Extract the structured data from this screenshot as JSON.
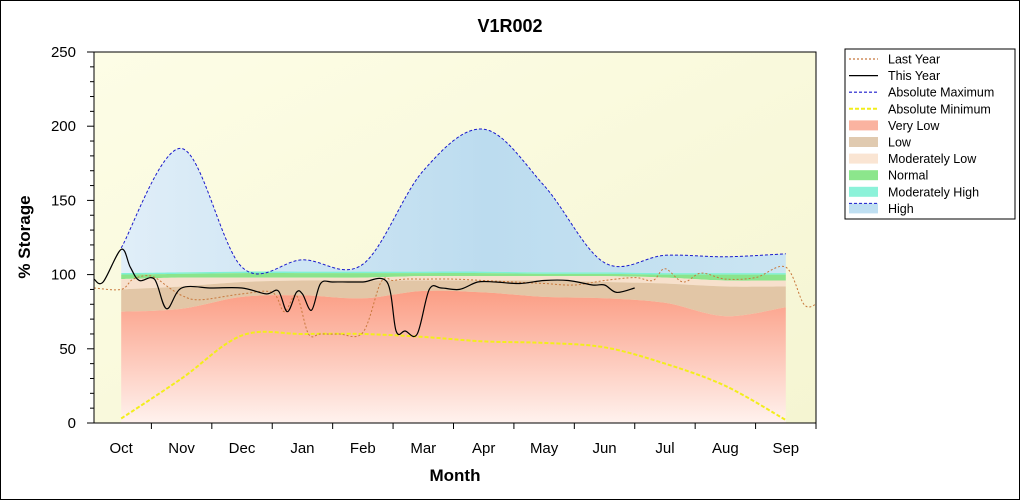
{
  "chart_data": {
    "type": "area",
    "title": "V1R002",
    "xlabel": "Month",
    "ylabel": "% Storage",
    "ylim": [
      0,
      250
    ],
    "yticks": [
      0,
      50,
      100,
      150,
      200,
      250
    ],
    "x_range": [
      -0.45,
      11.5
    ],
    "categories": [
      "Oct",
      "Nov",
      "Dec",
      "Jan",
      "Feb",
      "Mar",
      "Apr",
      "May",
      "Jun",
      "Jul",
      "Aug",
      "Sep"
    ],
    "legend_position": "right",
    "legend": [
      {
        "key": "last_year",
        "label": "Last Year",
        "kind": "line",
        "color": "#c8783c",
        "dash": "2,2"
      },
      {
        "key": "this_year",
        "label": "This Year",
        "kind": "line",
        "color": "#000000",
        "dash": ""
      },
      {
        "key": "abs_max",
        "label": "Absolute Maximum",
        "kind": "line",
        "color": "#1a1acc",
        "dash": "3,2"
      },
      {
        "key": "abs_min",
        "label": "Absolute Minimum",
        "kind": "line",
        "color": "#f2ee1a",
        "dash": "4,2"
      },
      {
        "key": "very_low",
        "label": "Very Low",
        "kind": "band",
        "color": "#f89a80"
      },
      {
        "key": "low",
        "label": "Low",
        "kind": "band",
        "color": "#d6b896"
      },
      {
        "key": "moderately_low",
        "label": "Moderately Low",
        "kind": "band",
        "color": "#f8dcc4"
      },
      {
        "key": "normal",
        "label": "Normal",
        "kind": "band",
        "color": "#66dd66"
      },
      {
        "key": "moderately_high",
        "label": "Moderately High",
        "kind": "band",
        "color": "#66eecc"
      },
      {
        "key": "high",
        "label": "High",
        "kind": "band",
        "color": "#aad4ee"
      }
    ],
    "bands_x": [
      0,
      1,
      2,
      3,
      4,
      5,
      6,
      7,
      8,
      9,
      10,
      11
    ],
    "abs_min": [
      3,
      30,
      59,
      60,
      60,
      58,
      55,
      54,
      51,
      40,
      25,
      2
    ],
    "very_low_top": [
      75,
      77,
      85,
      86,
      84,
      89,
      88,
      85,
      84,
      81,
      72,
      78
    ],
    "low_top": [
      90,
      92,
      95,
      96,
      96,
      96,
      96,
      96,
      95,
      94,
      92,
      92
    ],
    "moderately_low_top": [
      97,
      98,
      98,
      98,
      98,
      99,
      99,
      99,
      99,
      98,
      96,
      96
    ],
    "normal_top": [
      100,
      100.5,
      101,
      101,
      101,
      101,
      101,
      100.5,
      100.5,
      100,
      100,
      100
    ],
    "moderately_high_top": [
      101,
      101.5,
      102,
      102,
      102,
      102,
      102,
      101.5,
      101.5,
      101,
      101,
      101
    ],
    "abs_max": [
      118,
      185,
      105,
      110,
      107,
      170,
      198,
      160,
      108,
      113,
      112,
      114
    ],
    "this_year": {
      "x": [
        -0.45,
        -0.3,
        0.0,
        0.15,
        0.3,
        0.55,
        0.75,
        1.0,
        1.5,
        2.0,
        2.4,
        2.6,
        2.75,
        2.9,
        3.0,
        3.15,
        3.3,
        3.5,
        3.75,
        4.0,
        4.4,
        4.55,
        4.7,
        4.9,
        5.1,
        5.3,
        5.6,
        5.9,
        6.2,
        6.6,
        7.0,
        7.4,
        7.8,
        8.0,
        8.2,
        8.5
      ],
      "y": [
        97,
        95,
        117,
        105,
        96,
        97,
        77,
        91,
        91,
        91,
        87,
        89,
        75,
        88,
        87,
        76,
        94,
        95,
        95,
        95,
        95,
        62,
        62,
        60,
        90,
        91,
        90,
        95,
        95,
        94,
        96,
        96,
        93,
        93,
        88,
        91
      ]
    },
    "last_year": {
      "x": [
        -0.45,
        0.0,
        0.2,
        0.5,
        0.8,
        1.0,
        1.3,
        2.0,
        2.5,
        2.7,
        2.9,
        3.1,
        3.3,
        3.6,
        4.0,
        4.3,
        4.5,
        4.7,
        5.0,
        5.5,
        6.0,
        6.5,
        7.0,
        7.5,
        8.0,
        8.5,
        8.8,
        9.0,
        9.3,
        9.6,
        10.0,
        10.5,
        11.0,
        11.3,
        11.5
      ],
      "y": [
        91,
        90,
        97,
        99,
        91,
        86,
        83,
        87,
        88,
        75,
        86,
        60,
        60,
        60,
        61,
        95,
        96,
        97,
        97,
        97,
        96,
        95,
        94,
        93,
        96,
        98,
        96,
        104,
        95,
        101,
        97,
        98,
        105,
        80,
        80
      ]
    }
  }
}
